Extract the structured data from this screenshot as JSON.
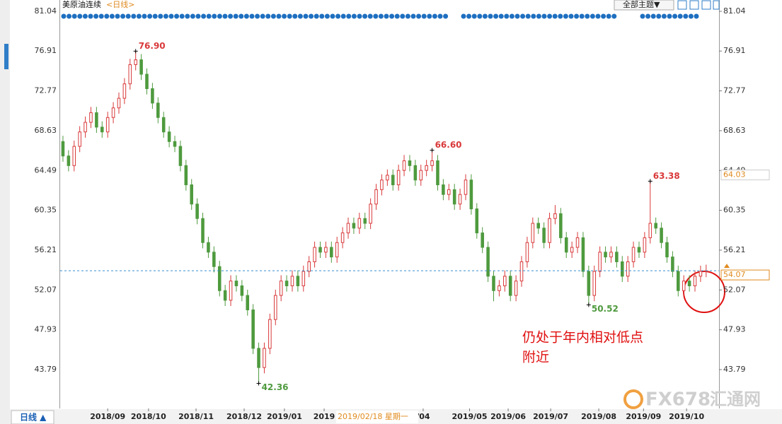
{
  "chart_data": {
    "type": "candlestick",
    "title": "美原油连续",
    "period": "<日线>",
    "theme_button": "全部主题▼",
    "period_tab": "日线 ▲",
    "crosshair_date": "2019/02/18 星期一",
    "annotation_text": [
      "仍处于年内相对低点",
      "附近"
    ],
    "watermark": "FX678",
    "watermark_cn": "汇通网",
    "up_color": "#d9393a",
    "down_color": "#4e9a3e",
    "ylim": [
      39.75,
      81.85
    ],
    "yticks": [
      {
        "value": 81.04,
        "label": "81.04"
      },
      {
        "value": 76.91,
        "label": "76.91"
      },
      {
        "value": 72.77,
        "label": "72.77"
      },
      {
        "value": 68.63,
        "label": "68.63"
      },
      {
        "value": 64.49,
        "label": "64.49"
      },
      {
        "value": 60.35,
        "label": "60.35"
      },
      {
        "value": 56.21,
        "label": "56.21"
      },
      {
        "value": 52.07,
        "label": "52.07"
      },
      {
        "value": 47.93,
        "label": "47.93"
      },
      {
        "value": 43.79,
        "label": "43.79"
      }
    ],
    "xlim": [
      -0.5,
      117.3
    ],
    "xticks": [
      {
        "value": 8,
        "label": "2018/09"
      },
      {
        "value": 15.3,
        "label": "2018/10"
      },
      {
        "value": 23.8,
        "label": "2018/11"
      },
      {
        "value": 32.4,
        "label": "2018/12"
      },
      {
        "value": 39.6,
        "label": "2019/01"
      },
      {
        "value": 46.7,
        "label": "2019"
      },
      {
        "value": 64.4,
        "label": "/04"
      },
      {
        "value": 72.7,
        "label": "2019/05"
      },
      {
        "value": 79.6,
        "label": "2019/06"
      },
      {
        "value": 87.2,
        "label": "2019/07"
      },
      {
        "value": 95.8,
        "label": "2019/08"
      },
      {
        "value": 103.8,
        "label": "2019/09"
      },
      {
        "value": 111.5,
        "label": "2019/10"
      }
    ],
    "last_price": {
      "value": 54.07,
      "label": "54.07"
    },
    "ref_price": {
      "value": 64.03,
      "label": "64.03"
    },
    "annotations": [
      {
        "candle": 13,
        "value": 76.9,
        "label": "76.90",
        "color": "#d9393a"
      },
      {
        "candle": 35,
        "value": 42.36,
        "label": "42.36",
        "color": "#4e9a3e"
      },
      {
        "candle": 66,
        "value": 66.6,
        "label": "66.60",
        "color": "#d9393a"
      },
      {
        "candle": 94,
        "value": 50.52,
        "label": "50.52",
        "color": "#4e9a3e"
      },
      {
        "candle": 105,
        "value": 63.38,
        "label": "63.38",
        "color": "#d9393a"
      }
    ],
    "candles": [
      [
        67.5,
        68.1,
        65.4,
        66
      ],
      [
        66,
        66.6,
        64.4,
        65
      ],
      [
        65,
        67.6,
        64.4,
        67
      ],
      [
        67,
        69.1,
        66.4,
        68.5
      ],
      [
        68.5,
        70.1,
        67.9,
        69.5
      ],
      [
        69.5,
        71.1,
        68.9,
        70.5
      ],
      [
        70.5,
        71.1,
        68.4,
        69
      ],
      [
        69,
        69.6,
        67.9,
        68.5
      ],
      [
        68.5,
        70.6,
        67.9,
        70
      ],
      [
        70,
        71.6,
        69.4,
        71
      ],
      [
        71,
        72.6,
        70.4,
        72
      ],
      [
        72,
        74.1,
        71.4,
        73.5
      ],
      [
        73.5,
        76.1,
        72.9,
        75.5
      ],
      [
        75.5,
        76.9,
        74.9,
        76
      ],
      [
        76,
        76.6,
        73.9,
        74.5
      ],
      [
        74.5,
        75.1,
        72.4,
        73
      ],
      [
        73,
        73.6,
        70.9,
        71.5
      ],
      [
        71.5,
        72.1,
        69.4,
        70
      ],
      [
        70,
        70.6,
        67.9,
        68.5
      ],
      [
        68.5,
        69.1,
        66.9,
        67.5
      ],
      [
        67.5,
        68.1,
        66.4,
        67
      ],
      [
        67,
        67.6,
        64.4,
        65
      ],
      [
        65,
        65.6,
        62.4,
        63
      ],
      [
        63,
        63.6,
        60.4,
        61
      ],
      [
        61,
        61.6,
        58.9,
        59.5
      ],
      [
        59.5,
        60.1,
        56.4,
        57
      ],
      [
        57,
        57.6,
        55.4,
        56
      ],
      [
        56,
        56.6,
        53.9,
        54.5
      ],
      [
        54.5,
        55.1,
        51.4,
        52
      ],
      [
        52,
        52.6,
        50.4,
        51
      ],
      [
        51,
        53.6,
        50.4,
        53
      ],
      [
        53,
        53.6,
        51.9,
        52.5
      ],
      [
        52.5,
        53.1,
        50.9,
        51.5
      ],
      [
        51.5,
        52.1,
        49.4,
        50
      ],
      [
        50,
        50.6,
        45.4,
        46
      ],
      [
        46,
        46.6,
        42.36,
        44
      ],
      [
        44,
        46.6,
        43.4,
        46
      ],
      [
        46,
        49.6,
        45.4,
        49
      ],
      [
        49,
        52.1,
        48.4,
        51.5
      ],
      [
        51.5,
        53.6,
        50.9,
        53
      ],
      [
        53,
        53.6,
        51.9,
        52.5
      ],
      [
        52.5,
        54.1,
        51.9,
        53.5
      ],
      [
        53.5,
        54.1,
        51.9,
        52.5
      ],
      [
        52.5,
        54.6,
        51.9,
        54
      ],
      [
        54,
        55.6,
        53.4,
        55
      ],
      [
        55,
        57.1,
        54.4,
        56.5
      ],
      [
        56.5,
        57.1,
        55.4,
        56
      ],
      [
        56,
        57.1,
        55.4,
        56.5
      ],
      [
        56.5,
        57.1,
        54.9,
        55.5
      ],
      [
        55.5,
        57.6,
        54.9,
        57
      ],
      [
        57,
        58.6,
        56.4,
        58
      ],
      [
        58,
        59.6,
        57.4,
        59
      ],
      [
        59,
        59.6,
        57.9,
        58.5
      ],
      [
        58.5,
        60.1,
        57.9,
        59.5
      ],
      [
        59.5,
        60.1,
        58.4,
        59
      ],
      [
        59,
        61.6,
        58.4,
        61
      ],
      [
        61,
        63.1,
        60.4,
        62.5
      ],
      [
        62.5,
        64.1,
        61.9,
        63.5
      ],
      [
        63.5,
        64.6,
        62.9,
        64
      ],
      [
        64,
        64.6,
        62.4,
        63
      ],
      [
        63,
        65.1,
        62.4,
        64.5
      ],
      [
        64.5,
        66.1,
        63.9,
        65.5
      ],
      [
        65.5,
        66.1,
        64.4,
        65
      ],
      [
        65,
        65.6,
        62.9,
        63.5
      ],
      [
        63.5,
        65.1,
        62.9,
        64.5
      ],
      [
        64.5,
        65.6,
        63.9,
        65
      ],
      [
        65,
        66.6,
        64.4,
        65.5
      ],
      [
        65.5,
        66.1,
        62.4,
        63
      ],
      [
        63,
        63.6,
        61.4,
        62
      ],
      [
        62,
        63.1,
        61.4,
        62.5
      ],
      [
        62.5,
        63.1,
        60.4,
        61
      ],
      [
        61,
        62.6,
        60.4,
        62
      ],
      [
        62,
        64.1,
        61.4,
        63.5
      ],
      [
        63.5,
        64.1,
        59.9,
        60.5
      ],
      [
        60.5,
        61.1,
        57.4,
        58
      ],
      [
        58,
        58.6,
        55.9,
        56.5
      ],
      [
        56.5,
        57.1,
        52.9,
        53.5
      ],
      [
        53.5,
        54.1,
        50.9,
        52
      ],
      [
        52,
        53.1,
        51.4,
        52.5
      ],
      [
        52.5,
        54.1,
        51.9,
        53.5
      ],
      [
        53.5,
        54.1,
        50.9,
        51.5
      ],
      [
        51.5,
        53.6,
        50.9,
        53
      ],
      [
        53,
        55.6,
        52.4,
        55
      ],
      [
        55,
        57.6,
        54.4,
        57
      ],
      [
        57,
        59.6,
        56.4,
        59
      ],
      [
        59,
        59.6,
        57.9,
        58.5
      ],
      [
        58.5,
        59.1,
        56.4,
        57
      ],
      [
        57,
        60.1,
        56.4,
        59.5
      ],
      [
        59.5,
        60.9,
        58.9,
        60
      ],
      [
        60,
        60.6,
        56.9,
        57.5
      ],
      [
        57.5,
        58.1,
        55.4,
        56
      ],
      [
        56,
        57.1,
        55.4,
        56.5
      ],
      [
        56.5,
        58.1,
        55.9,
        57.5
      ],
      [
        57.5,
        58.1,
        53.4,
        54
      ],
      [
        54,
        54.6,
        50.52,
        51.5
      ],
      [
        51.5,
        54.6,
        50.9,
        54
      ],
      [
        54,
        56.6,
        53.4,
        56
      ],
      [
        56,
        56.6,
        54.9,
        55.5
      ],
      [
        55.5,
        56.6,
        54.9,
        56
      ],
      [
        56,
        56.6,
        54.4,
        55
      ],
      [
        55,
        55.6,
        52.9,
        53.5
      ],
      [
        53.5,
        55.6,
        52.9,
        55
      ],
      [
        55,
        57.1,
        54.4,
        56.5
      ],
      [
        56.5,
        57.1,
        55.4,
        56
      ],
      [
        56,
        58.1,
        55.4,
        57.5
      ],
      [
        57.5,
        63.38,
        56.9,
        59
      ],
      [
        59,
        59.6,
        57.9,
        58.5
      ],
      [
        58.5,
        59.1,
        56.4,
        57
      ],
      [
        57,
        57.6,
        54.9,
        55.5
      ],
      [
        55.5,
        56.1,
        53.4,
        54
      ],
      [
        54,
        54.6,
        51.4,
        52
      ],
      [
        52,
        53.6,
        51.4,
        53
      ],
      [
        53,
        53.6,
        51.9,
        52.5
      ],
      [
        52.5,
        54.1,
        51.9,
        53.5
      ],
      [
        53.5,
        54.6,
        52.9,
        54
      ],
      [
        54,
        54.7,
        53.4,
        54.07
      ]
    ]
  }
}
